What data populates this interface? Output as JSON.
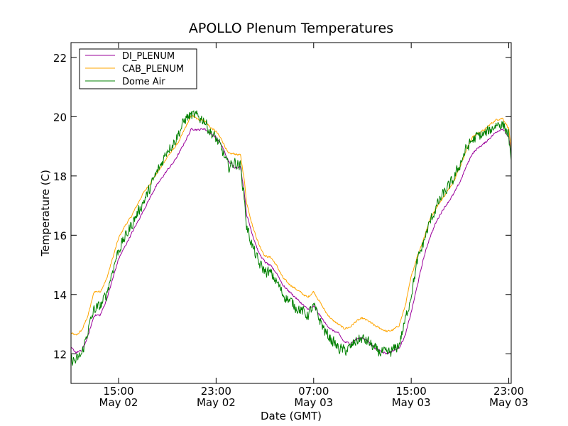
{
  "chart_data": {
    "type": "line",
    "title": "APOLLO Plenum Temperatures",
    "xlabel": "Date (GMT)",
    "ylabel": "Temperature (C)",
    "x_unit": "hours since May 02 00:00 GMT",
    "xlim": [
      11.1,
      47.2
    ],
    "ylim": [
      11.0,
      22.5
    ],
    "yticks": [
      12,
      14,
      16,
      18,
      20,
      22
    ],
    "ytick_labels": [
      "12",
      "14",
      "16",
      "18",
      "20",
      "22"
    ],
    "xticks": [
      {
        "x": 15,
        "time": "15:00",
        "date": "May 02"
      },
      {
        "x": 23,
        "time": "23:00",
        "date": "May 02"
      },
      {
        "x": 31,
        "time": "07:00",
        "date": "May 03"
      },
      {
        "x": 39,
        "time": "15:00",
        "date": "May 03"
      },
      {
        "x": 47,
        "time": "23:00",
        "date": "May 03"
      }
    ],
    "legend_position": "top-left",
    "grid": false,
    "series": [
      {
        "name": "DI_PLENUM",
        "color": "#9b009b",
        "noise": 0.03,
        "points": [
          [
            11.1,
            12.2
          ],
          [
            11.5,
            12.05
          ],
          [
            12,
            12.1
          ],
          [
            12.5,
            12.6
          ],
          [
            13,
            13.3
          ],
          [
            13.5,
            13.3
          ],
          [
            14,
            13.8
          ],
          [
            14.5,
            14.5
          ],
          [
            15,
            15.2
          ],
          [
            15.5,
            15.6
          ],
          [
            16,
            16.0
          ],
          [
            16.5,
            16.4
          ],
          [
            17,
            16.8
          ],
          [
            17.5,
            17.2
          ],
          [
            18,
            17.6
          ],
          [
            18.5,
            17.9
          ],
          [
            19,
            18.2
          ],
          [
            19.5,
            18.45
          ],
          [
            20,
            18.8
          ],
          [
            20.5,
            19.2
          ],
          [
            21,
            19.6
          ],
          [
            21.5,
            19.55
          ],
          [
            22,
            19.6
          ],
          [
            22.5,
            19.45
          ],
          [
            23,
            19.3
          ],
          [
            23.5,
            19.0
          ],
          [
            24,
            18.5
          ],
          [
            24.5,
            18.3
          ],
          [
            25,
            18.3
          ],
          [
            25.3,
            17.5
          ],
          [
            25.5,
            16.7
          ],
          [
            26,
            16.0
          ],
          [
            26.5,
            15.4
          ],
          [
            27,
            15.1
          ],
          [
            27.5,
            14.95
          ],
          [
            28,
            14.7
          ],
          [
            28.5,
            14.3
          ],
          [
            29,
            14.1
          ],
          [
            29.5,
            13.9
          ],
          [
            30,
            13.7
          ],
          [
            30.5,
            13.5
          ],
          [
            31,
            13.6
          ],
          [
            31.5,
            13.3
          ],
          [
            32,
            13.0
          ],
          [
            32.5,
            12.8
          ],
          [
            33,
            12.7
          ],
          [
            33.5,
            12.4
          ],
          [
            34,
            12.35
          ],
          [
            34.5,
            12.5
          ],
          [
            35,
            12.55
          ],
          [
            35.5,
            12.4
          ],
          [
            36,
            12.2
          ],
          [
            36.5,
            12.1
          ],
          [
            37,
            12.0
          ],
          [
            37.5,
            12.1
          ],
          [
            38,
            12.2
          ],
          [
            38.5,
            12.6
          ],
          [
            39,
            13.4
          ],
          [
            39.5,
            14.3
          ],
          [
            40,
            15.2
          ],
          [
            40.5,
            15.9
          ],
          [
            41,
            16.4
          ],
          [
            41.5,
            16.8
          ],
          [
            42,
            17.1
          ],
          [
            42.5,
            17.4
          ],
          [
            43,
            17.8
          ],
          [
            43.5,
            18.3
          ],
          [
            44,
            18.75
          ],
          [
            44.5,
            18.95
          ],
          [
            45,
            19.1
          ],
          [
            45.5,
            19.3
          ],
          [
            46,
            19.5
          ],
          [
            46.5,
            19.6
          ],
          [
            47,
            19.3
          ],
          [
            47.2,
            18.7
          ]
        ]
      },
      {
        "name": "CAB_PLENUM",
        "color": "#ffa500",
        "noise": 0.03,
        "points": [
          [
            11.1,
            12.7
          ],
          [
            11.5,
            12.62
          ],
          [
            12,
            12.8
          ],
          [
            12.5,
            13.3
          ],
          [
            13,
            14.1
          ],
          [
            13.5,
            14.1
          ],
          [
            14,
            14.5
          ],
          [
            14.5,
            15.2
          ],
          [
            15,
            15.9
          ],
          [
            15.5,
            16.3
          ],
          [
            16,
            16.6
          ],
          [
            16.5,
            17.0
          ],
          [
            17,
            17.4
          ],
          [
            17.5,
            17.7
          ],
          [
            18,
            18.0
          ],
          [
            18.5,
            18.3
          ],
          [
            19,
            18.65
          ],
          [
            19.5,
            18.9
          ],
          [
            20,
            19.2
          ],
          [
            20.5,
            19.65
          ],
          [
            21,
            20.05
          ],
          [
            21.5,
            19.9
          ],
          [
            22,
            19.9
          ],
          [
            22.5,
            19.65
          ],
          [
            23,
            19.5
          ],
          [
            23.5,
            19.2
          ],
          [
            24,
            18.75
          ],
          [
            24.5,
            18.75
          ],
          [
            25,
            18.7
          ],
          [
            25.3,
            17.9
          ],
          [
            25.5,
            17.1
          ],
          [
            26,
            16.3
          ],
          [
            26.5,
            15.7
          ],
          [
            27,
            15.3
          ],
          [
            27.5,
            15.25
          ],
          [
            28,
            14.95
          ],
          [
            28.5,
            14.55
          ],
          [
            29,
            14.35
          ],
          [
            29.5,
            14.2
          ],
          [
            30,
            14.05
          ],
          [
            30.5,
            13.9
          ],
          [
            31,
            14.1
          ],
          [
            31.5,
            13.75
          ],
          [
            32,
            13.4
          ],
          [
            32.5,
            13.15
          ],
          [
            33,
            13.0
          ],
          [
            33.5,
            12.85
          ],
          [
            34,
            12.9
          ],
          [
            34.5,
            13.1
          ],
          [
            35,
            13.2
          ],
          [
            35.5,
            13.1
          ],
          [
            36,
            12.95
          ],
          [
            36.5,
            12.85
          ],
          [
            37,
            12.75
          ],
          [
            37.5,
            12.8
          ],
          [
            38,
            12.95
          ],
          [
            38.5,
            13.6
          ],
          [
            39,
            14.6
          ],
          [
            39.5,
            15.3
          ],
          [
            40,
            15.85
          ],
          [
            40.5,
            16.5
          ],
          [
            41,
            16.9
          ],
          [
            41.5,
            17.2
          ],
          [
            42,
            17.5
          ],
          [
            42.5,
            17.85
          ],
          [
            43,
            18.3
          ],
          [
            43.5,
            18.85
          ],
          [
            44,
            19.3
          ],
          [
            44.5,
            19.45
          ],
          [
            45,
            19.55
          ],
          [
            45.5,
            19.75
          ],
          [
            46,
            19.9
          ],
          [
            46.5,
            19.95
          ],
          [
            47,
            19.6
          ],
          [
            47.2,
            18.9
          ]
        ]
      },
      {
        "name": "Dome Air",
        "color": "#008000",
        "noise": 0.17,
        "points": [
          [
            11.1,
            11.8
          ],
          [
            11.5,
            11.75
          ],
          [
            12,
            12.0
          ],
          [
            12.5,
            12.8
          ],
          [
            13,
            13.5
          ],
          [
            13.5,
            13.6
          ],
          [
            14,
            14.0
          ],
          [
            14.5,
            14.8
          ],
          [
            15,
            15.5
          ],
          [
            15.5,
            15.9
          ],
          [
            16,
            16.3
          ],
          [
            16.5,
            16.7
          ],
          [
            17,
            17.1
          ],
          [
            17.5,
            17.5
          ],
          [
            18,
            18.0
          ],
          [
            18.5,
            18.4
          ],
          [
            19,
            18.9
          ],
          [
            19.5,
            19.1
          ],
          [
            20,
            19.5
          ],
          [
            20.5,
            19.95
          ],
          [
            21,
            20.05
          ],
          [
            21.5,
            20.0
          ],
          [
            22,
            19.9
          ],
          [
            22.5,
            19.5
          ],
          [
            23,
            19.25
          ],
          [
            23.5,
            18.85
          ],
          [
            24,
            18.3
          ],
          [
            24.5,
            18.45
          ],
          [
            25,
            18.35
          ],
          [
            25.3,
            17.3
          ],
          [
            25.5,
            16.3
          ],
          [
            26,
            15.6
          ],
          [
            26.5,
            15.05
          ],
          [
            27,
            14.8
          ],
          [
            27.5,
            14.7
          ],
          [
            28,
            14.4
          ],
          [
            28.5,
            14.0
          ],
          [
            29,
            13.8
          ],
          [
            29.5,
            13.6
          ],
          [
            30,
            13.45
          ],
          [
            30.5,
            13.3
          ],
          [
            31,
            13.6
          ],
          [
            31.5,
            13.15
          ],
          [
            32,
            12.7
          ],
          [
            32.5,
            12.45
          ],
          [
            33,
            12.2
          ],
          [
            33.5,
            12.1
          ],
          [
            34,
            12.2
          ],
          [
            34.5,
            12.45
          ],
          [
            35,
            12.5
          ],
          [
            35.5,
            12.4
          ],
          [
            36,
            12.15
          ],
          [
            36.5,
            12.05
          ],
          [
            37,
            12.0
          ],
          [
            37.5,
            12.1
          ],
          [
            38,
            12.3
          ],
          [
            38.5,
            13.1
          ],
          [
            39,
            14.0
          ],
          [
            39.5,
            15.1
          ],
          [
            40,
            15.75
          ],
          [
            40.5,
            16.4
          ],
          [
            41,
            16.9
          ],
          [
            41.5,
            17.3
          ],
          [
            42,
            17.6
          ],
          [
            42.5,
            17.9
          ],
          [
            43,
            18.4
          ],
          [
            43.5,
            18.9
          ],
          [
            44,
            19.2
          ],
          [
            44.5,
            19.35
          ],
          [
            45,
            19.4
          ],
          [
            45.5,
            19.55
          ],
          [
            46,
            19.75
          ],
          [
            46.5,
            19.75
          ],
          [
            47,
            19.4
          ],
          [
            47.2,
            18.3
          ]
        ]
      }
    ]
  }
}
